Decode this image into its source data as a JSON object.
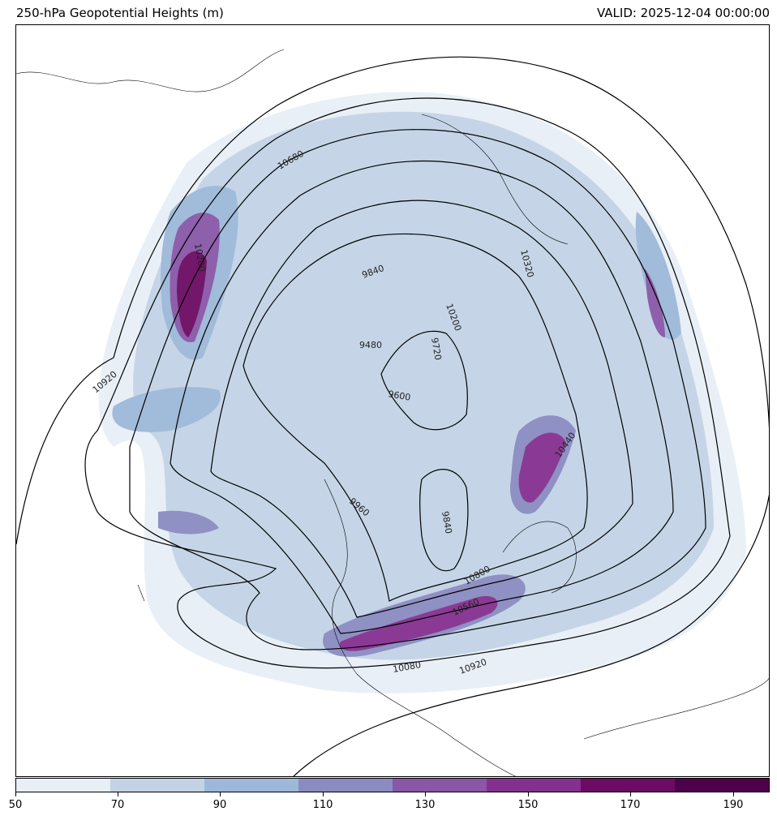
{
  "title": "250-hPa Geopotential Heights (m)",
  "valid": "VALID: 2025-12-04 00:00:00",
  "colorbar": {
    "ticks": [
      "50",
      "70",
      "90",
      "110",
      "130",
      "150",
      "170",
      "190"
    ],
    "colors": [
      "#e8eff6",
      "#c2d3e6",
      "#9db8d9",
      "#8a8bc0",
      "#8957a6",
      "#84308f",
      "#6c0b63",
      "#4d004b"
    ]
  },
  "contour_labels": [
    "10680",
    "9840",
    "9480",
    "9720",
    "10200",
    "10320",
    "9600",
    "10920",
    "10440",
    "9960",
    "9840",
    "10080",
    "10560",
    "10800",
    "10920",
    "10200"
  ]
}
